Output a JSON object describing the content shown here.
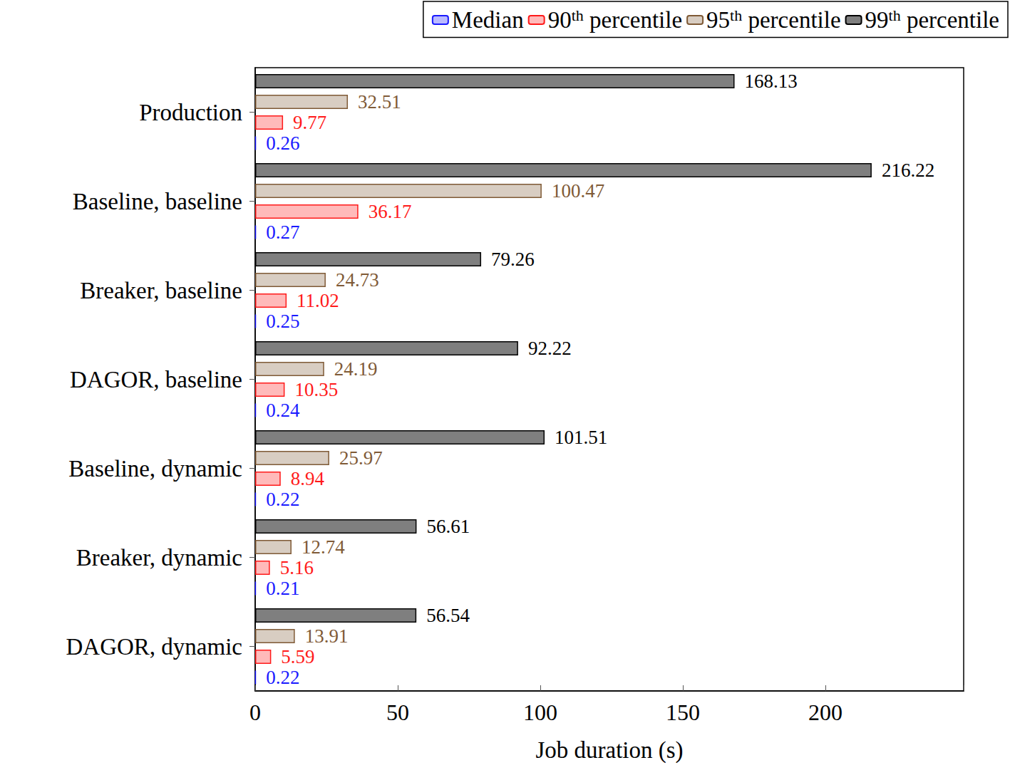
{
  "chart_data": {
    "type": "bar",
    "orientation": "horizontal",
    "x_label": "Job duration (s)",
    "categories": [
      "Production",
      "Baseline, baseline",
      "Breaker, baseline",
      "DAGOR, baseline",
      "Baseline, dynamic",
      "Breaker, dynamic",
      "DAGOR, dynamic"
    ],
    "series": [
      {
        "name": "Median",
        "color": "#1a1aff",
        "values": [
          0.26,
          0.27,
          0.25,
          0.24,
          0.22,
          0.21,
          0.22
        ]
      },
      {
        "name": "90th percentile",
        "color": "#ff1a1a",
        "values": [
          9.77,
          36.17,
          11.02,
          10.35,
          8.94,
          5.16,
          5.59
        ]
      },
      {
        "name": "95th percentile",
        "color": "#7f5a36",
        "values": [
          32.51,
          100.47,
          24.73,
          24.19,
          25.97,
          12.74,
          13.91
        ]
      },
      {
        "name": "99th percentile",
        "color": "#000000",
        "values": [
          168.13,
          216.22,
          79.26,
          92.22,
          101.51,
          56.61,
          56.54
        ]
      }
    ],
    "xlim": [
      0,
      248.5
    ],
    "xticks": [
      0,
      50,
      100,
      150,
      200
    ],
    "data_labels": true,
    "legend": "top-right",
    "grid": false
  }
}
